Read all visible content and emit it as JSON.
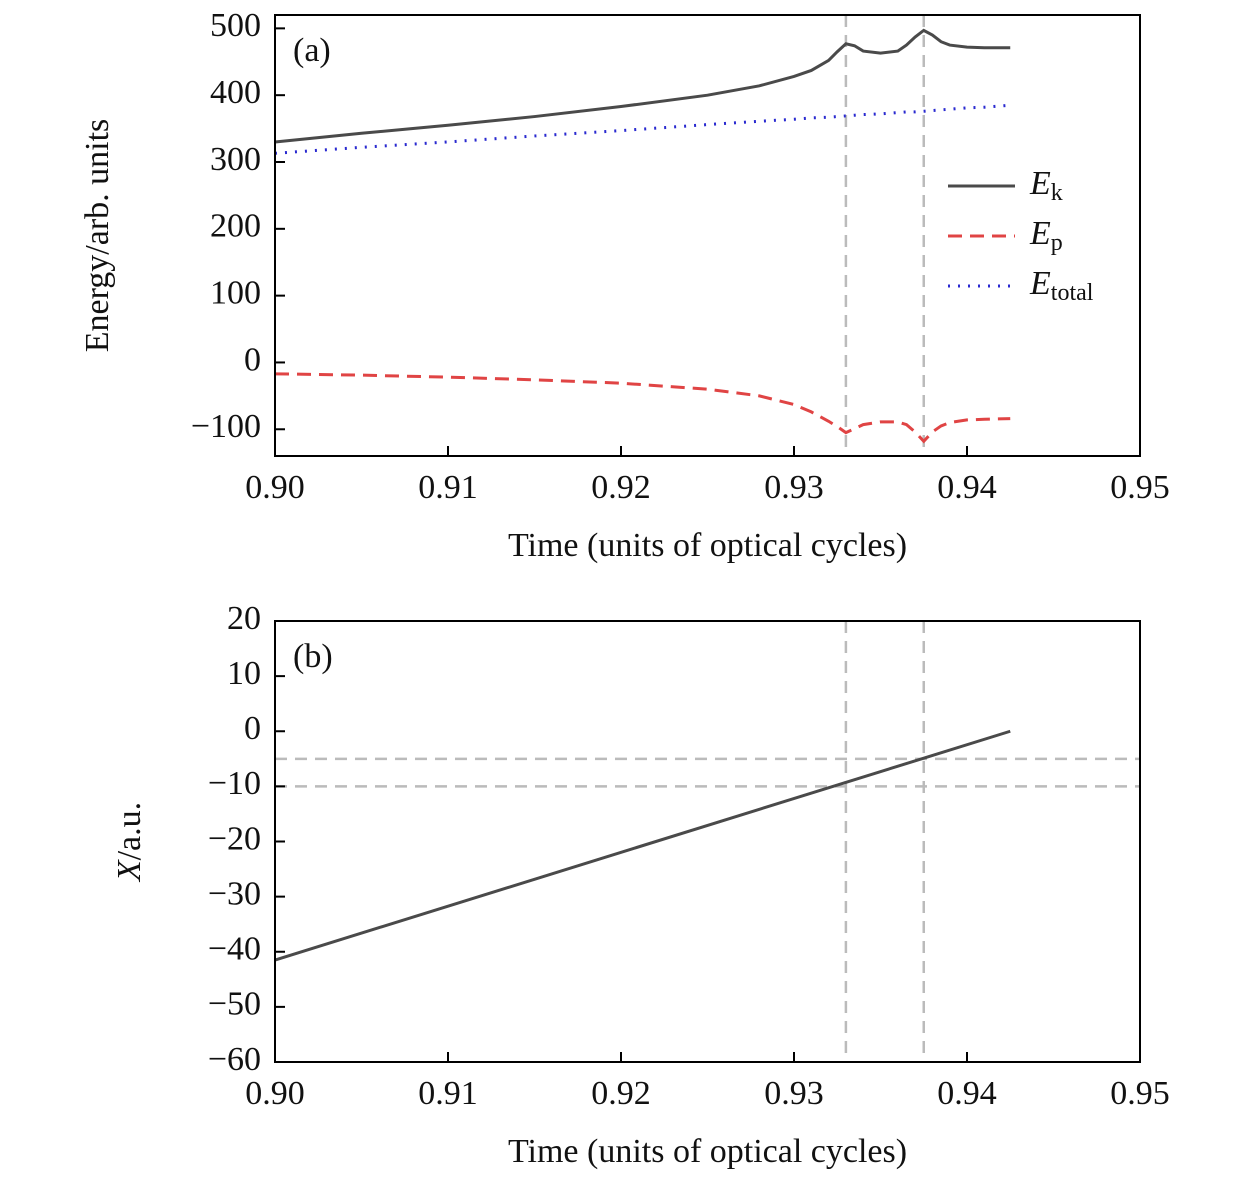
{
  "chart_data": [
    {
      "type": "line",
      "annotation": "(a)",
      "x_label": "Time (units of optical cycles)",
      "y_label": "Energy/arb. units",
      "x": [
        0.9,
        0.905,
        0.91,
        0.915,
        0.92,
        0.925,
        0.928,
        0.93,
        0.931,
        0.932,
        0.9325,
        0.933,
        0.9335,
        0.934,
        0.935,
        0.936,
        0.9365,
        0.937,
        0.9375,
        0.938,
        0.9385,
        0.939,
        0.94,
        0.941,
        0.9425
      ],
      "series": [
        {
          "name": "Ek",
          "color": "#4a4a4a",
          "dash": "solid",
          "values": [
            330,
            343,
            355,
            368,
            383,
            400,
            414,
            428,
            437,
            452,
            465,
            477,
            474,
            466,
            463,
            466,
            475,
            487,
            497,
            490,
            480,
            475,
            472,
            471,
            471
          ]
        },
        {
          "name": "Ep",
          "color": "#e04444",
          "dash": "dashed",
          "values": [
            -17,
            -19,
            -22,
            -26,
            -31,
            -40,
            -50,
            -63,
            -74,
            -88,
            -96,
            -105,
            -99,
            -93,
            -89,
            -89,
            -93,
            -104,
            -118,
            -104,
            -95,
            -90,
            -86,
            -85,
            -84
          ]
        },
        {
          "name": "Etotal",
          "color": "#2a2ad0",
          "dash": "dotted",
          "values": [
            313,
            322,
            330,
            339,
            347,
            356,
            361,
            364,
            366,
            367,
            368,
            369,
            370,
            371,
            372,
            374,
            375,
            375,
            376,
            377,
            378,
            379,
            381,
            382,
            385
          ]
        }
      ],
      "xlim": [
        0.9,
        0.95
      ],
      "xticks": [
        {
          "value": 0.9,
          "label": "0.90"
        },
        0.91,
        0.92,
        0.93,
        0.94,
        0.95
      ],
      "ylim": [
        -140,
        520
      ],
      "yticks": [
        {
          "value": -100,
          "label": "−100"
        },
        0,
        100,
        200,
        300,
        400,
        500
      ],
      "vlines": [
        0.933,
        0.9375
      ],
      "legend": "upper right"
    },
    {
      "type": "line",
      "annotation": "(b)",
      "x_label": "Time (units of optical cycles)",
      "y_label": "X/a.u.",
      "x": [
        0.9,
        0.9425
      ],
      "series": [
        {
          "color": "#4a4a4a",
          "dash": "solid",
          "values": [
            -41.5,
            0
          ]
        }
      ],
      "xlim": [
        0.9,
        0.95
      ],
      "xticks": [
        {
          "value": 0.9,
          "label": "0.90"
        },
        0.91,
        0.92,
        0.93,
        0.94,
        0.95
      ],
      "ylim": [
        -60,
        20
      ],
      "yticks": [
        {
          "value": -60,
          "label": "−60"
        },
        {
          "value": -50,
          "label": "−50"
        },
        {
          "value": -40,
          "label": "−40"
        },
        {
          "value": -30,
          "label": "−30"
        },
        {
          "value": -20,
          "label": "−20"
        },
        {
          "value": -10,
          "label": "−10"
        },
        0,
        10,
        20
      ],
      "vlines": [
        0.933,
        0.9375
      ],
      "hlines": [
        -5,
        -10
      ]
    }
  ]
}
